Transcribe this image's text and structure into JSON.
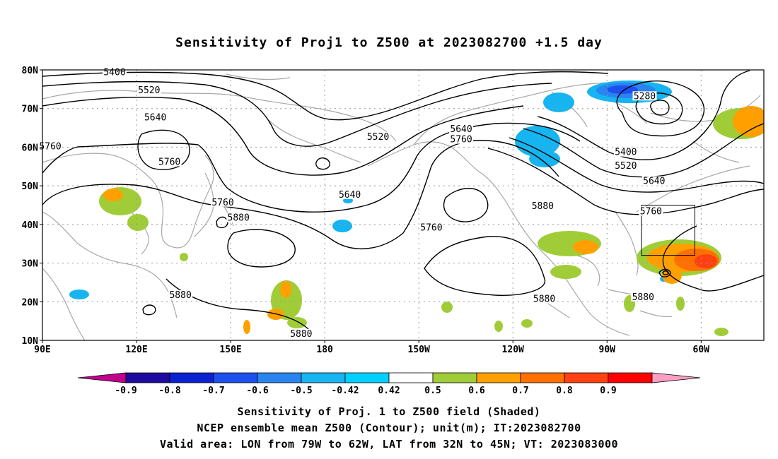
{
  "title": "Sensitivity of Proj1 to Z500 at 2023082700 +1.5 day",
  "lat_labels": [
    "80N",
    "70N",
    "60N",
    "50N",
    "40N",
    "30N",
    "20N",
    "10N"
  ],
  "lon_labels": [
    "90E",
    "120E",
    "150E",
    "180",
    "150W",
    "120W",
    "90W",
    "60W"
  ],
  "contour_labels": [
    {
      "text": "5400",
      "lon": 113,
      "lat": 79.2
    },
    {
      "text": "5520",
      "lon": 124,
      "lat": 74.5
    },
    {
      "text": "5640",
      "lon": 126,
      "lat": 67.5
    },
    {
      "text": "5760",
      "lon": 92.5,
      "lat": 60
    },
    {
      "text": "5760",
      "lon": 130.5,
      "lat": 56
    },
    {
      "text": "5520",
      "lon": 197,
      "lat": 62.5
    },
    {
      "text": "5640",
      "lon": 223.5,
      "lat": 64.5
    },
    {
      "text": "5760",
      "lon": 223.5,
      "lat": 61.8
    },
    {
      "text": "5280",
      "lon": 282,
      "lat": 73
    },
    {
      "text": "5400",
      "lon": 276,
      "lat": 58.5
    },
    {
      "text": "5520",
      "lon": 276,
      "lat": 55
    },
    {
      "text": "5640",
      "lon": 285,
      "lat": 51
    },
    {
      "text": "5760",
      "lon": 147.5,
      "lat": 45.5
    },
    {
      "text": "5640",
      "lon": 188,
      "lat": 47.5
    },
    {
      "text": "5880",
      "lon": 152.5,
      "lat": 41.5
    },
    {
      "text": "5760",
      "lon": 214,
      "lat": 39
    },
    {
      "text": "5880",
      "lon": 249.5,
      "lat": 44.5
    },
    {
      "text": "5760",
      "lon": 284,
      "lat": 43.2
    },
    {
      "text": "5880",
      "lon": 134,
      "lat": 21.5
    },
    {
      "text": "5880",
      "lon": 250,
      "lat": 20.5
    },
    {
      "text": "5880",
      "lon": 281.5,
      "lat": 21
    },
    {
      "text": "5880",
      "lon": 172.5,
      "lat": 11.5
    }
  ],
  "colorbar": {
    "labels": [
      "-0.9",
      "-0.8",
      "-0.7",
      "-0.6",
      "-0.5",
      "-0.42",
      "0.42",
      "0.5",
      "0.6",
      "0.7",
      "0.8",
      "0.9"
    ],
    "colors": [
      "#c0008c",
      "#1e0aa0",
      "#0a22d2",
      "#1e50f0",
      "#2a84f0",
      "#16b4f0",
      "#00d0ff",
      "#ffffff",
      "#a0cc38",
      "#ffa000",
      "#ff7000",
      "#ff4010",
      "#ff0000",
      "#ff9ec4"
    ]
  },
  "captions": {
    "line1": "Sensitivity of Proj. 1 to Z500 field (Shaded)",
    "line2": "NCEP ensemble mean Z500 (Contour); unit(m); IT:2023082700",
    "line3": "Valid area: LON from 79W to 62W, LAT from 32N to 45N; VT: 2023083000"
  },
  "valid_area": {
    "lon_west": 281,
    "lon_east": 298,
    "lat_south": 32,
    "lat_north": 45
  }
}
